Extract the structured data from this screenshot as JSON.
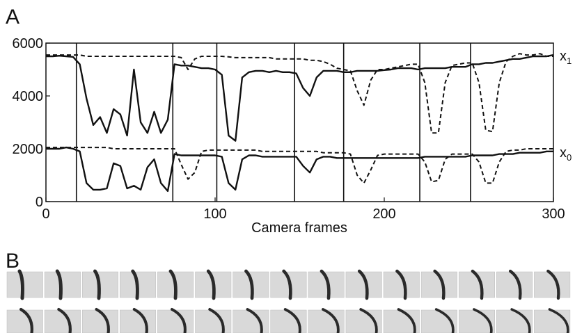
{
  "chart_data": {
    "type": "line",
    "panel_labels": [
      "A",
      "B"
    ],
    "x_label": "Camera frames",
    "xlim": [
      0,
      300
    ],
    "ylim": [
      0,
      6000
    ],
    "xticks": [
      0,
      100,
      200,
      300
    ],
    "yticks": [
      0,
      2000,
      4000,
      6000
    ],
    "frame_markers": [
      18,
      75,
      101,
      147,
      176,
      221,
      251
    ],
    "curve_labels": [
      {
        "base": "x",
        "sub": "1"
      },
      {
        "base": "x",
        "sub": "0"
      }
    ],
    "x": [
      0,
      4,
      8,
      12,
      16,
      20,
      24,
      28,
      32,
      36,
      40,
      44,
      48,
      52,
      56,
      60,
      64,
      68,
      72,
      76,
      80,
      84,
      88,
      92,
      96,
      100,
      104,
      108,
      112,
      116,
      120,
      124,
      128,
      132,
      136,
      140,
      144,
      148,
      152,
      156,
      160,
      164,
      168,
      172,
      176,
      180,
      184,
      188,
      192,
      196,
      200,
      204,
      208,
      212,
      216,
      220,
      224,
      228,
      232,
      236,
      240,
      244,
      248,
      252,
      256,
      260,
      264,
      268,
      272,
      276,
      280,
      284,
      288,
      292,
      296,
      300
    ],
    "series": [
      {
        "color": "#111111",
        "dashed": false,
        "values": [
          5500,
          5500,
          5520,
          5500,
          5480,
          5200,
          3900,
          2900,
          3200,
          2600,
          3500,
          3300,
          2500,
          5000,
          3000,
          2600,
          3400,
          2600,
          3100,
          5200,
          5150,
          5150,
          5100,
          5050,
          5050,
          5000,
          4800,
          2500,
          2300,
          4700,
          4900,
          4950,
          4950,
          4900,
          4950,
          4900,
          4900,
          4850,
          4300,
          4000,
          4700,
          4950,
          4950,
          4950,
          4900,
          4900,
          4950,
          4950,
          4950,
          4950,
          4980,
          5000,
          5050,
          5050,
          5050,
          5000,
          5050,
          5050,
          5050,
          5050,
          5100,
          5100,
          5100,
          5200,
          5200,
          5250,
          5250,
          5300,
          5350,
          5400,
          5400,
          5450,
          5500,
          5500,
          5500,
          5550
        ]
      },
      {
        "color": "#111111",
        "dashed": true,
        "values": [
          5550,
          5550,
          5550,
          5550,
          5550,
          5550,
          5500,
          5500,
          5500,
          5500,
          5500,
          5500,
          5500,
          5500,
          5500,
          5500,
          5500,
          5500,
          5500,
          5500,
          5450,
          5000,
          5400,
          5500,
          5500,
          5500,
          5500,
          5480,
          5450,
          5450,
          5450,
          5450,
          5450,
          5450,
          5400,
          5400,
          5400,
          5400,
          5400,
          5350,
          5350,
          5300,
          5200,
          5050,
          5000,
          4950,
          4200,
          3650,
          4600,
          5000,
          5000,
          5050,
          5100,
          5150,
          5200,
          5200,
          4500,
          2600,
          2600,
          4500,
          5150,
          5200,
          5250,
          5250,
          4500,
          2700,
          2650,
          4500,
          5300,
          5500,
          5600,
          5550,
          5550,
          5600,
          5500,
          5500
        ]
      },
      {
        "color": "#111111",
        "dashed": false,
        "values": [
          2000,
          2000,
          2000,
          2050,
          2000,
          1900,
          700,
          450,
          450,
          500,
          1450,
          1350,
          500,
          600,
          450,
          1300,
          1600,
          700,
          400,
          1800,
          1750,
          1750,
          1750,
          1750,
          1750,
          1750,
          1700,
          700,
          450,
          1600,
          1750,
          1750,
          1700,
          1700,
          1700,
          1700,
          1700,
          1700,
          1350,
          1100,
          1600,
          1700,
          1700,
          1650,
          1650,
          1650,
          1650,
          1650,
          1650,
          1650,
          1650,
          1650,
          1650,
          1650,
          1650,
          1650,
          1700,
          1700,
          1700,
          1700,
          1700,
          1700,
          1700,
          1750,
          1750,
          1750,
          1750,
          1800,
          1800,
          1800,
          1850,
          1850,
          1850,
          1850,
          1900,
          1900
        ]
      },
      {
        "color": "#111111",
        "dashed": true,
        "values": [
          2050,
          2050,
          2050,
          2050,
          2050,
          2050,
          2050,
          2050,
          2050,
          2050,
          2000,
          2000,
          2000,
          2000,
          2000,
          2000,
          2000,
          2000,
          2000,
          2000,
          1400,
          850,
          1100,
          1900,
          1950,
          1950,
          1950,
          1950,
          1950,
          1950,
          1950,
          1950,
          1900,
          1900,
          1900,
          1900,
          1900,
          1900,
          1900,
          1900,
          1900,
          1850,
          1850,
          1850,
          1850,
          1800,
          1000,
          700,
          1200,
          1750,
          1800,
          1800,
          1800,
          1800,
          1800,
          1800,
          1500,
          750,
          800,
          1600,
          1800,
          1800,
          1800,
          1800,
          1500,
          700,
          700,
          1500,
          1900,
          1950,
          1950,
          2000,
          2000,
          2000,
          2000,
          2000
        ]
      }
    ]
  }
}
